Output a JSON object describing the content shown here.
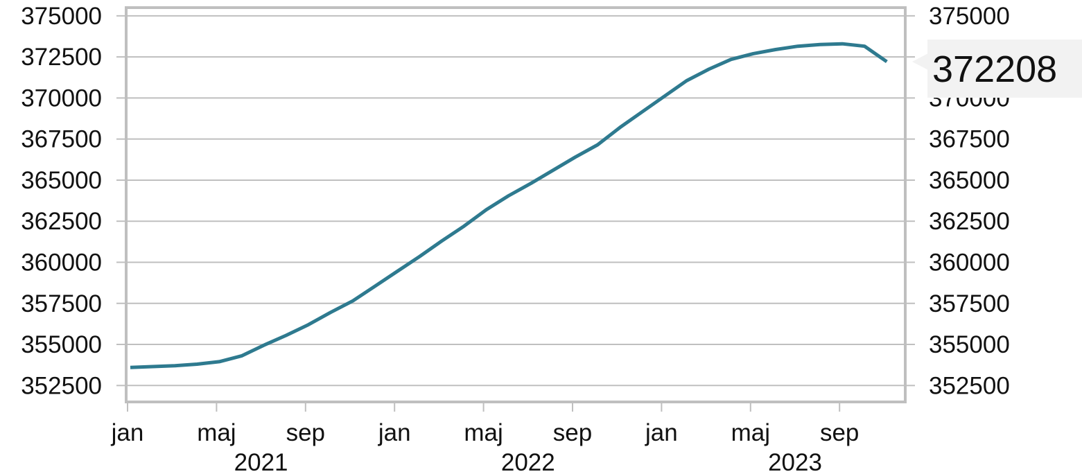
{
  "colors": {
    "line": "#2e7a8f",
    "grid": "#bfbfbf",
    "frame": "#bfbfbf",
    "callout_bg": "#f2f2f2"
  },
  "chart_data": {
    "type": "line",
    "title": "",
    "xlabel": "",
    "ylabel": "",
    "ylim": [
      351500,
      375500
    ],
    "yticks": [
      352500,
      355000,
      357500,
      360000,
      362500,
      365000,
      367500,
      370000,
      372500,
      375000
    ],
    "y_axis_both_sides": true,
    "grid": true,
    "x_month_labels": [
      "jan",
      "maj",
      "sep",
      "jan",
      "maj",
      "sep",
      "jan",
      "maj",
      "sep"
    ],
    "x_year_labels": [
      "2021",
      "2022",
      "2023"
    ],
    "x": [
      "2021-01",
      "2021-02",
      "2021-03",
      "2021-04",
      "2021-05",
      "2021-06",
      "2021-07",
      "2021-08",
      "2021-09",
      "2021-10",
      "2021-11",
      "2021-12",
      "2022-01",
      "2022-02",
      "2022-03",
      "2022-04",
      "2022-05",
      "2022-06",
      "2022-07",
      "2022-08",
      "2022-09",
      "2022-10",
      "2022-11",
      "2022-12",
      "2023-01",
      "2023-02",
      "2023-03",
      "2023-04",
      "2023-05",
      "2023-06",
      "2023-07",
      "2023-08",
      "2023-09",
      "2023-10",
      "2023-11"
    ],
    "series": [
      {
        "values": [
          353600,
          353650,
          353700,
          353800,
          353950,
          354300,
          354950,
          355550,
          356200,
          356950,
          357650,
          358550,
          359450,
          360350,
          361300,
          362200,
          363200,
          364050,
          364800,
          365600,
          366400,
          367150,
          368200,
          369150,
          370100,
          371050,
          371750,
          372350,
          372700,
          372950,
          373150,
          373250,
          373300,
          373150,
          372208
        ]
      }
    ],
    "last_value_label": "372208"
  }
}
